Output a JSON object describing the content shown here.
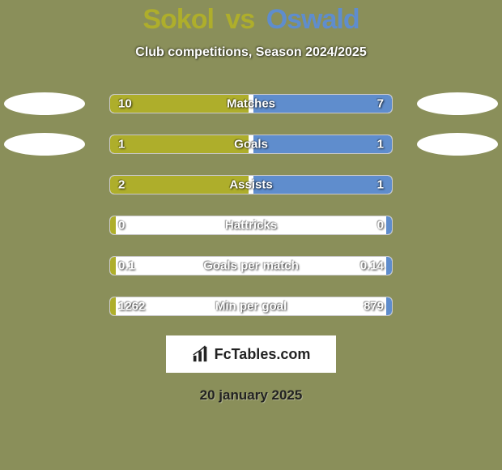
{
  "theme": {
    "bg_color": "#8a8f5a",
    "p1_color": "#aeae2b",
    "p2_color": "#5f8dcd",
    "bar_track_color": "#ffffff",
    "text_shadow_dark": "rgba(0,0,0,0.8)"
  },
  "title": {
    "player1": "Sokol",
    "vs": "vs",
    "player2": "Oswald"
  },
  "subtitle": "Club competitions, Season 2024/2025",
  "rows": [
    {
      "label": "Matches",
      "left_val": "10",
      "right_val": "7",
      "left_pct": 49,
      "right_pct": 49,
      "show_ovals": true
    },
    {
      "label": "Goals",
      "left_val": "1",
      "right_val": "1",
      "left_pct": 49,
      "right_pct": 49,
      "show_ovals": true
    },
    {
      "label": "Assists",
      "left_val": "2",
      "right_val": "1",
      "left_pct": 49,
      "right_pct": 49,
      "show_ovals": false
    },
    {
      "label": "Hattricks",
      "left_val": "0",
      "right_val": "0",
      "left_pct": 2,
      "right_pct": 2,
      "show_ovals": false
    },
    {
      "label": "Goals per match",
      "left_val": "0.1",
      "right_val": "0.14",
      "left_pct": 2,
      "right_pct": 2,
      "show_ovals": false
    },
    {
      "label": "Min per goal",
      "left_val": "1262",
      "right_val": "879",
      "left_pct": 2,
      "right_pct": 2,
      "show_ovals": false
    }
  ],
  "logo": {
    "text": "FcTables.com"
  },
  "date": "20 january 2025"
}
